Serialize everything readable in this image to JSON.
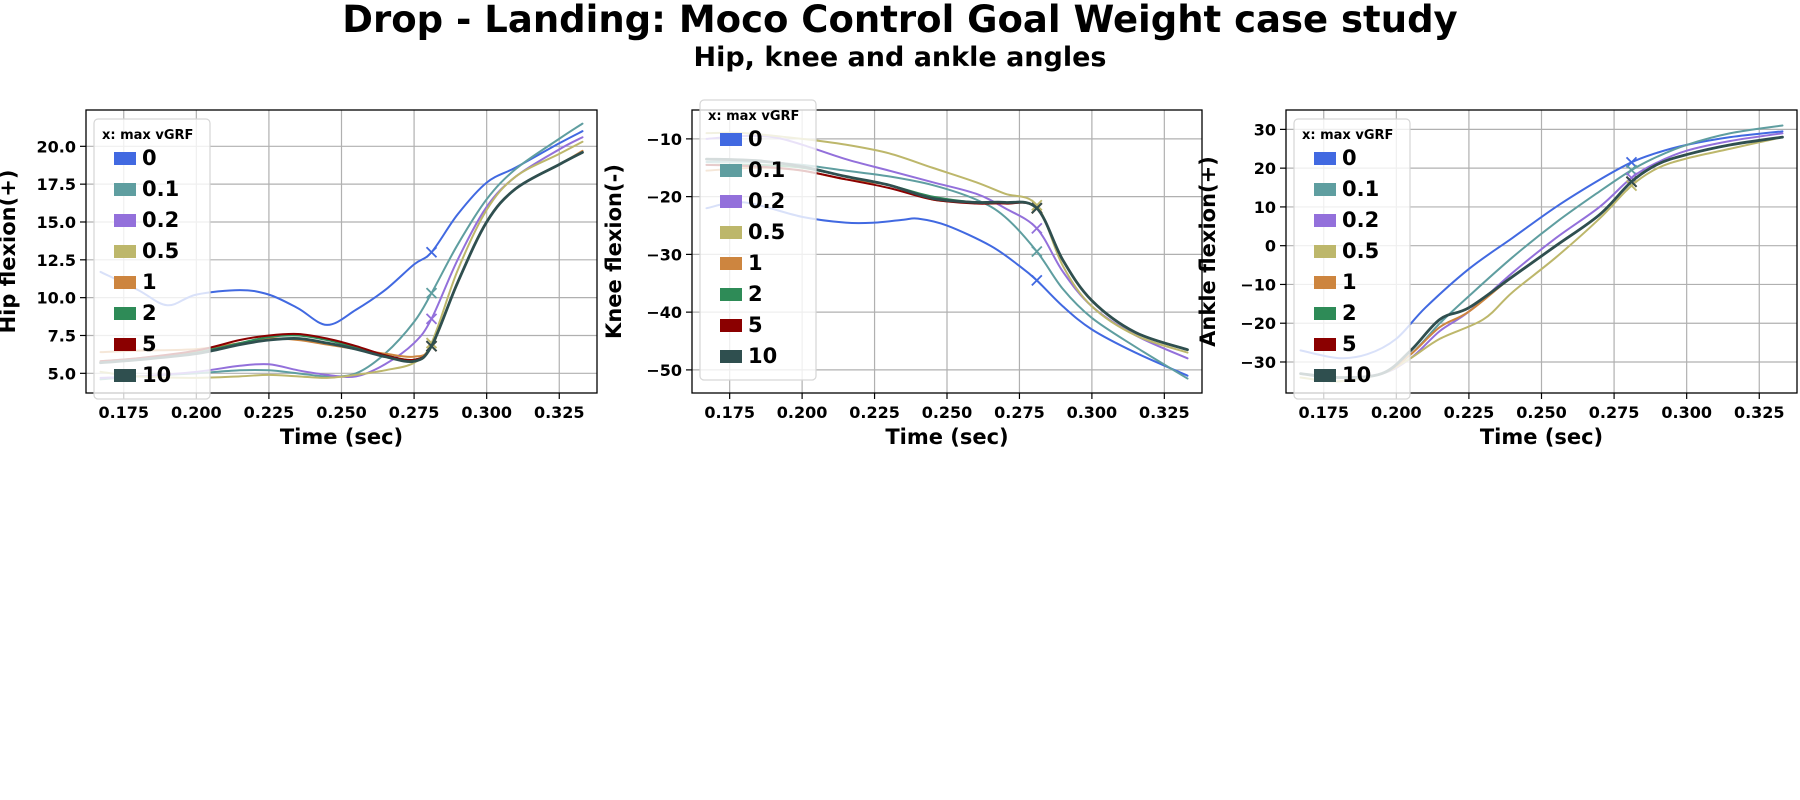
{
  "title": "Drop - Landing: Moco Control Goal Weight case study",
  "subtitle": "Hip, knee and ankle angles",
  "chart_data": [
    {
      "type": "line",
      "ylabel": "Hip flexion(+)",
      "xlabel": "Time (sec)",
      "xlim": [
        0.162,
        0.338
      ],
      "ylim": [
        3.7,
        22.4
      ],
      "xticks": [
        0.175,
        0.2,
        0.225,
        0.25,
        0.275,
        0.3,
        0.325
      ],
      "xtick_labels": [
        "0.175",
        "0.200",
        "0.225",
        "0.250",
        "0.275",
        "0.300",
        "0.325"
      ],
      "yticks": [
        5.0,
        7.5,
        10.0,
        12.5,
        15.0,
        17.5,
        20.0
      ],
      "ytick_labels": [
        "5.0",
        "7.5",
        "10.0",
        "12.5",
        "15.0",
        "17.5",
        "20.0"
      ],
      "grid": true,
      "legend": {
        "title": "x: max vGRF",
        "placement": "upper-left"
      },
      "marker_x": 0.281,
      "series": [
        {
          "name": "0",
          "color": "#4169e1",
          "x": [
            0.167,
            0.18,
            0.19,
            0.2,
            0.215,
            0.225,
            0.235,
            0.245,
            0.255,
            0.265,
            0.275,
            0.281,
            0.29,
            0.3,
            0.31,
            0.325,
            0.333
          ],
          "y": [
            11.7,
            10.5,
            9.5,
            10.2,
            10.5,
            10.2,
            9.3,
            8.2,
            9.2,
            10.5,
            12.2,
            13.0,
            15.5,
            17.6,
            18.6,
            20.2,
            21.0
          ],
          "marker_y": 13.0
        },
        {
          "name": "0.1",
          "color": "#5f9ea0",
          "x": [
            0.167,
            0.18,
            0.2,
            0.215,
            0.225,
            0.235,
            0.245,
            0.255,
            0.265,
            0.275,
            0.281,
            0.29,
            0.3,
            0.31,
            0.325,
            0.333
          ],
          "y": [
            4.6,
            4.8,
            5.0,
            5.2,
            5.2,
            5.0,
            4.8,
            5.0,
            6.3,
            8.4,
            10.3,
            13.5,
            16.5,
            18.5,
            20.5,
            21.5
          ],
          "marker_y": 10.3
        },
        {
          "name": "0.2",
          "color": "#9370db",
          "x": [
            0.167,
            0.18,
            0.2,
            0.215,
            0.225,
            0.235,
            0.245,
            0.255,
            0.265,
            0.275,
            0.281,
            0.29,
            0.3,
            0.31,
            0.325,
            0.333
          ],
          "y": [
            4.7,
            4.8,
            5.1,
            5.5,
            5.6,
            5.2,
            4.9,
            4.8,
            5.6,
            7.0,
            8.6,
            12.5,
            16.0,
            18.0,
            19.8,
            20.6
          ],
          "marker_y": 8.6
        },
        {
          "name": "0.5",
          "color": "#bdb76b",
          "x": [
            0.167,
            0.18,
            0.2,
            0.215,
            0.225,
            0.235,
            0.245,
            0.255,
            0.265,
            0.275,
            0.281,
            0.29,
            0.3,
            0.31,
            0.325,
            0.333
          ],
          "y": [
            5.1,
            4.8,
            4.7,
            4.8,
            4.9,
            4.8,
            4.7,
            4.9,
            5.2,
            5.7,
            7.0,
            11.8,
            15.8,
            18.0,
            19.5,
            20.3
          ],
          "marker_y": 7.0
        },
        {
          "name": "1",
          "color": "#cd853f",
          "x": [
            0.167,
            0.18,
            0.2,
            0.215,
            0.225,
            0.235,
            0.245,
            0.255,
            0.265,
            0.275,
            0.281,
            0.29,
            0.3,
            0.31,
            0.325,
            0.333
          ],
          "y": [
            6.4,
            6.5,
            6.6,
            7.0,
            7.3,
            7.2,
            6.9,
            6.6,
            6.3,
            6.1,
            6.8,
            11.0,
            15.0,
            17.2,
            18.8,
            19.7
          ],
          "marker_y": 6.8
        },
        {
          "name": "2",
          "color": "#2e8b57",
          "x": [
            0.167,
            0.18,
            0.2,
            0.215,
            0.225,
            0.235,
            0.245,
            0.255,
            0.265,
            0.275,
            0.281,
            0.29,
            0.3,
            0.31,
            0.325,
            0.333
          ],
          "y": [
            5.8,
            6.0,
            6.4,
            7.0,
            7.4,
            7.5,
            7.2,
            6.7,
            6.2,
            5.9,
            6.8,
            11.0,
            15.0,
            17.2,
            18.8,
            19.6
          ],
          "marker_y": 6.8
        },
        {
          "name": "5",
          "color": "#8b0000",
          "x": [
            0.167,
            0.18,
            0.2,
            0.215,
            0.225,
            0.235,
            0.245,
            0.255,
            0.265,
            0.275,
            0.281,
            0.29,
            0.3,
            0.31,
            0.325,
            0.333
          ],
          "y": [
            5.8,
            6.0,
            6.5,
            7.2,
            7.5,
            7.6,
            7.3,
            6.8,
            6.2,
            5.9,
            6.8,
            11.0,
            15.0,
            17.2,
            18.8,
            19.6
          ],
          "marker_y": 6.8
        },
        {
          "name": "10",
          "color": "#2f4f4f",
          "x": [
            0.167,
            0.18,
            0.2,
            0.215,
            0.225,
            0.235,
            0.245,
            0.255,
            0.265,
            0.275,
            0.281,
            0.29,
            0.3,
            0.31,
            0.325,
            0.333
          ],
          "y": [
            5.7,
            5.9,
            6.3,
            6.9,
            7.2,
            7.3,
            7.0,
            6.6,
            6.1,
            5.8,
            6.8,
            11.0,
            15.0,
            17.2,
            18.8,
            19.6
          ],
          "marker_y": 6.8
        }
      ]
    },
    {
      "type": "line",
      "ylabel": "Knee flexion(-)",
      "xlabel": "Time (sec)",
      "xlim": [
        0.162,
        0.338
      ],
      "ylim": [
        -54,
        -5
      ],
      "xticks": [
        0.175,
        0.2,
        0.225,
        0.25,
        0.275,
        0.3,
        0.325
      ],
      "xtick_labels": [
        "0.175",
        "0.200",
        "0.225",
        "0.250",
        "0.275",
        "0.300",
        "0.325"
      ],
      "yticks": [
        -50,
        -40,
        -30,
        -20,
        -10
      ],
      "ytick_labels": [
        "−50",
        "−40",
        "−30",
        "−20",
        "−10"
      ],
      "grid": true,
      "legend": {
        "title": "x: max vGRF",
        "placement": "upper-left"
      },
      "marker_x": 0.281,
      "series": [
        {
          "name": "0",
          "color": "#4169e1",
          "x": [
            0.167,
            0.18,
            0.2,
            0.215,
            0.225,
            0.235,
            0.24,
            0.25,
            0.265,
            0.275,
            0.281,
            0.29,
            0.3,
            0.315,
            0.333
          ],
          "y": [
            -22,
            -21,
            -23.5,
            -24.5,
            -24.5,
            -24,
            -23.8,
            -25,
            -28.5,
            -32,
            -34.5,
            -39,
            -43,
            -47,
            -51
          ],
          "marker_y": -34.5
        },
        {
          "name": "0.1",
          "color": "#5f9ea0",
          "x": [
            0.167,
            0.185,
            0.2,
            0.215,
            0.23,
            0.245,
            0.26,
            0.27,
            0.281,
            0.29,
            0.3,
            0.315,
            0.333
          ],
          "y": [
            -14,
            -14,
            -14.5,
            -15.5,
            -16.5,
            -18,
            -20.5,
            -23.5,
            -29.5,
            -36,
            -41,
            -46,
            -51.5
          ],
          "marker_y": -29.5
        },
        {
          "name": "0.2",
          "color": "#9370db",
          "x": [
            0.167,
            0.18,
            0.19,
            0.2,
            0.215,
            0.23,
            0.245,
            0.26,
            0.27,
            0.281,
            0.29,
            0.3,
            0.315,
            0.333
          ],
          "y": [
            -10,
            -9.5,
            -9.7,
            -11,
            -13.5,
            -15.5,
            -17.5,
            -19.5,
            -22,
            -25.5,
            -33,
            -39,
            -44,
            -48
          ],
          "marker_y": -25.5
        },
        {
          "name": "0.5",
          "color": "#bdb76b",
          "x": [
            0.167,
            0.18,
            0.2,
            0.215,
            0.23,
            0.245,
            0.26,
            0.27,
            0.281,
            0.29,
            0.3,
            0.315,
            0.333
          ],
          "y": [
            -9,
            -9,
            -10,
            -11,
            -12.5,
            -15,
            -17.5,
            -19.5,
            -21.5,
            -32,
            -39,
            -44,
            -47
          ],
          "marker_y": -21.5
        },
        {
          "name": "1",
          "color": "#cd853f",
          "x": [
            0.167,
            0.185,
            0.2,
            0.215,
            0.23,
            0.245,
            0.26,
            0.27,
            0.281,
            0.29,
            0.3,
            0.315,
            0.333
          ],
          "y": [
            -15.5,
            -15,
            -15.5,
            -17,
            -18,
            -20.5,
            -21,
            -21,
            -22,
            -31,
            -38,
            -43.5,
            -46.5
          ],
          "marker_y": -22
        },
        {
          "name": "2",
          "color": "#2e8b57",
          "x": [
            0.167,
            0.185,
            0.2,
            0.215,
            0.23,
            0.245,
            0.26,
            0.27,
            0.281,
            0.29,
            0.3,
            0.315,
            0.333
          ],
          "y": [
            -14.5,
            -14.5,
            -15,
            -16.5,
            -18,
            -20,
            -21,
            -21,
            -22,
            -31,
            -38,
            -43.5,
            -46.5
          ],
          "marker_y": -22
        },
        {
          "name": "5",
          "color": "#8b0000",
          "x": [
            0.167,
            0.185,
            0.2,
            0.215,
            0.23,
            0.245,
            0.26,
            0.27,
            0.281,
            0.29,
            0.3,
            0.315,
            0.333
          ],
          "y": [
            -14.5,
            -14.8,
            -15.5,
            -17,
            -18.5,
            -20.5,
            -21.2,
            -21.2,
            -22,
            -31,
            -38,
            -43.5,
            -46.5
          ],
          "marker_y": -22
        },
        {
          "name": "10",
          "color": "#2f4f4f",
          "x": [
            0.167,
            0.185,
            0.2,
            0.215,
            0.23,
            0.245,
            0.26,
            0.27,
            0.281,
            0.29,
            0.3,
            0.315,
            0.333
          ],
          "y": [
            -13.5,
            -13.8,
            -14.8,
            -16.5,
            -18,
            -20.3,
            -21,
            -21,
            -22,
            -31,
            -38,
            -43.5,
            -46.5
          ],
          "marker_y": -22
        }
      ]
    },
    {
      "type": "line",
      "ylabel": "Ankle flexion(+)",
      "xlabel": "Time (sec)",
      "xlim": [
        0.162,
        0.338
      ],
      "ylim": [
        -38,
        35
      ],
      "xticks": [
        0.175,
        0.2,
        0.225,
        0.25,
        0.275,
        0.3,
        0.325
      ],
      "xtick_labels": [
        "0.175",
        "0.200",
        "0.225",
        "0.250",
        "0.275",
        "0.300",
        "0.325"
      ],
      "yticks": [
        -30,
        -20,
        -10,
        0,
        10,
        20,
        30
      ],
      "ytick_labels": [
        "−30",
        "−20",
        "−10",
        "0",
        "10",
        "20",
        "30"
      ],
      "grid": true,
      "legend": {
        "title": "x: max vGRF",
        "placement": "upper-left"
      },
      "marker_x": 0.281,
      "series": [
        {
          "name": "0",
          "color": "#4169e1",
          "x": [
            0.167,
            0.18,
            0.19,
            0.2,
            0.21,
            0.225,
            0.24,
            0.255,
            0.27,
            0.281,
            0.29,
            0.3,
            0.315,
            0.333
          ],
          "y": [
            -27,
            -29,
            -28,
            -24,
            -16,
            -6,
            2,
            10,
            17,
            21.5,
            24,
            26,
            28,
            29.5
          ],
          "marker_y": 21.5
        },
        {
          "name": "0.1",
          "color": "#5f9ea0",
          "x": [
            0.167,
            0.18,
            0.195,
            0.205,
            0.215,
            0.225,
            0.24,
            0.255,
            0.27,
            0.281,
            0.29,
            0.3,
            0.315,
            0.333
          ],
          "y": [
            -33,
            -34,
            -33,
            -28,
            -20,
            -13,
            -3,
            6,
            14,
            19.5,
            23,
            26,
            29,
            31
          ],
          "marker_y": 19.5
        },
        {
          "name": "0.2",
          "color": "#9370db",
          "x": [
            0.167,
            0.18,
            0.195,
            0.205,
            0.215,
            0.225,
            0.24,
            0.255,
            0.27,
            0.281,
            0.29,
            0.3,
            0.315,
            0.333
          ],
          "y": [
            -33,
            -34,
            -33,
            -29,
            -22,
            -17,
            -7,
            2,
            10,
            17.5,
            21.5,
            24.5,
            27,
            29
          ],
          "marker_y": 17.5
        },
        {
          "name": "0.5",
          "color": "#bdb76b",
          "x": [
            0.167,
            0.18,
            0.195,
            0.205,
            0.215,
            0.23,
            0.24,
            0.255,
            0.27,
            0.281,
            0.29,
            0.3,
            0.315,
            0.333
          ],
          "y": [
            -34,
            -35,
            -33,
            -29,
            -24,
            -19,
            -12,
            -3,
            7,
            15.5,
            20,
            22.5,
            25,
            28
          ],
          "marker_y": 15.5
        },
        {
          "name": "1",
          "color": "#cd853f",
          "x": [
            0.167,
            0.18,
            0.195,
            0.205,
            0.215,
            0.225,
            0.24,
            0.255,
            0.27,
            0.281,
            0.29,
            0.3,
            0.315,
            0.333
          ],
          "y": [
            -33,
            -34,
            -33,
            -28,
            -21,
            -17,
            -8,
            0,
            8,
            16.5,
            21,
            23.5,
            26,
            28
          ],
          "marker_y": 16.5
        },
        {
          "name": "2",
          "color": "#2e8b57",
          "x": [
            0.167,
            0.18,
            0.195,
            0.205,
            0.215,
            0.225,
            0.24,
            0.255,
            0.27,
            0.281,
            0.29,
            0.3,
            0.315,
            0.333
          ],
          "y": [
            -33,
            -34,
            -33,
            -27,
            -19,
            -16,
            -8,
            0,
            8,
            16.5,
            21,
            23.5,
            26,
            28
          ],
          "marker_y": 16.5
        },
        {
          "name": "5",
          "color": "#8b0000",
          "x": [
            0.167,
            0.18,
            0.195,
            0.205,
            0.215,
            0.225,
            0.24,
            0.255,
            0.27,
            0.281,
            0.29,
            0.3,
            0.315,
            0.333
          ],
          "y": [
            -33,
            -34,
            -33,
            -27,
            -19,
            -16,
            -8,
            0,
            8,
            16.5,
            21,
            23.5,
            26,
            28
          ],
          "marker_y": 16.5
        },
        {
          "name": "10",
          "color": "#2f4f4f",
          "x": [
            0.167,
            0.18,
            0.195,
            0.205,
            0.215,
            0.225,
            0.24,
            0.255,
            0.27,
            0.281,
            0.29,
            0.3,
            0.315,
            0.333
          ],
          "y": [
            -33,
            -34,
            -33,
            -27,
            -19,
            -16,
            -8,
            0,
            8,
            16.5,
            21,
            23.5,
            26,
            28
          ],
          "marker_y": 16.5
        }
      ]
    }
  ]
}
